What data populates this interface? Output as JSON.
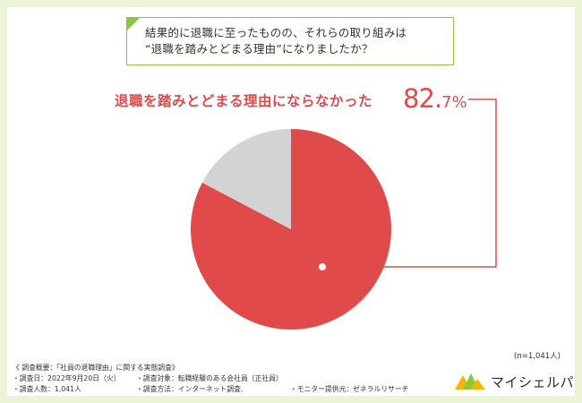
{
  "question": {
    "line1": "結果的に退職に至ったものの、それらの取り組みは",
    "line2": "“退職を踏みとどまる理由”になりましたか？"
  },
  "callout": {
    "label": "退職を踏みとどまる理由にならなかった",
    "percent_main": "82.",
    "percent_decimal": "7%"
  },
  "chart_data": {
    "type": "pie",
    "slices": [
      {
        "label": "退職を踏みとどまる理由にならなかった",
        "value": 82.7,
        "color": "#e04a4a"
      },
      {
        "label": "",
        "value": 17.3,
        "color": "#d3d3d3"
      }
    ],
    "start_angle_deg": 0,
    "direction": "clockwise"
  },
  "sample": "(n=1,041人)",
  "survey": {
    "title": "《 調査概要：「社員の退職理由」に関する実態調査》",
    "date": "・調査日：2022年9月20日（火）",
    "target": "・調査対象：転職経験のある会社員（正社員）",
    "count": "・調査人数：1,041人",
    "method": "・調査方法：インターネット調査.",
    "provider": "・モニター提供元：ゼネラルリサーチ"
  },
  "logo": {
    "text": "マイシェルパ"
  }
}
